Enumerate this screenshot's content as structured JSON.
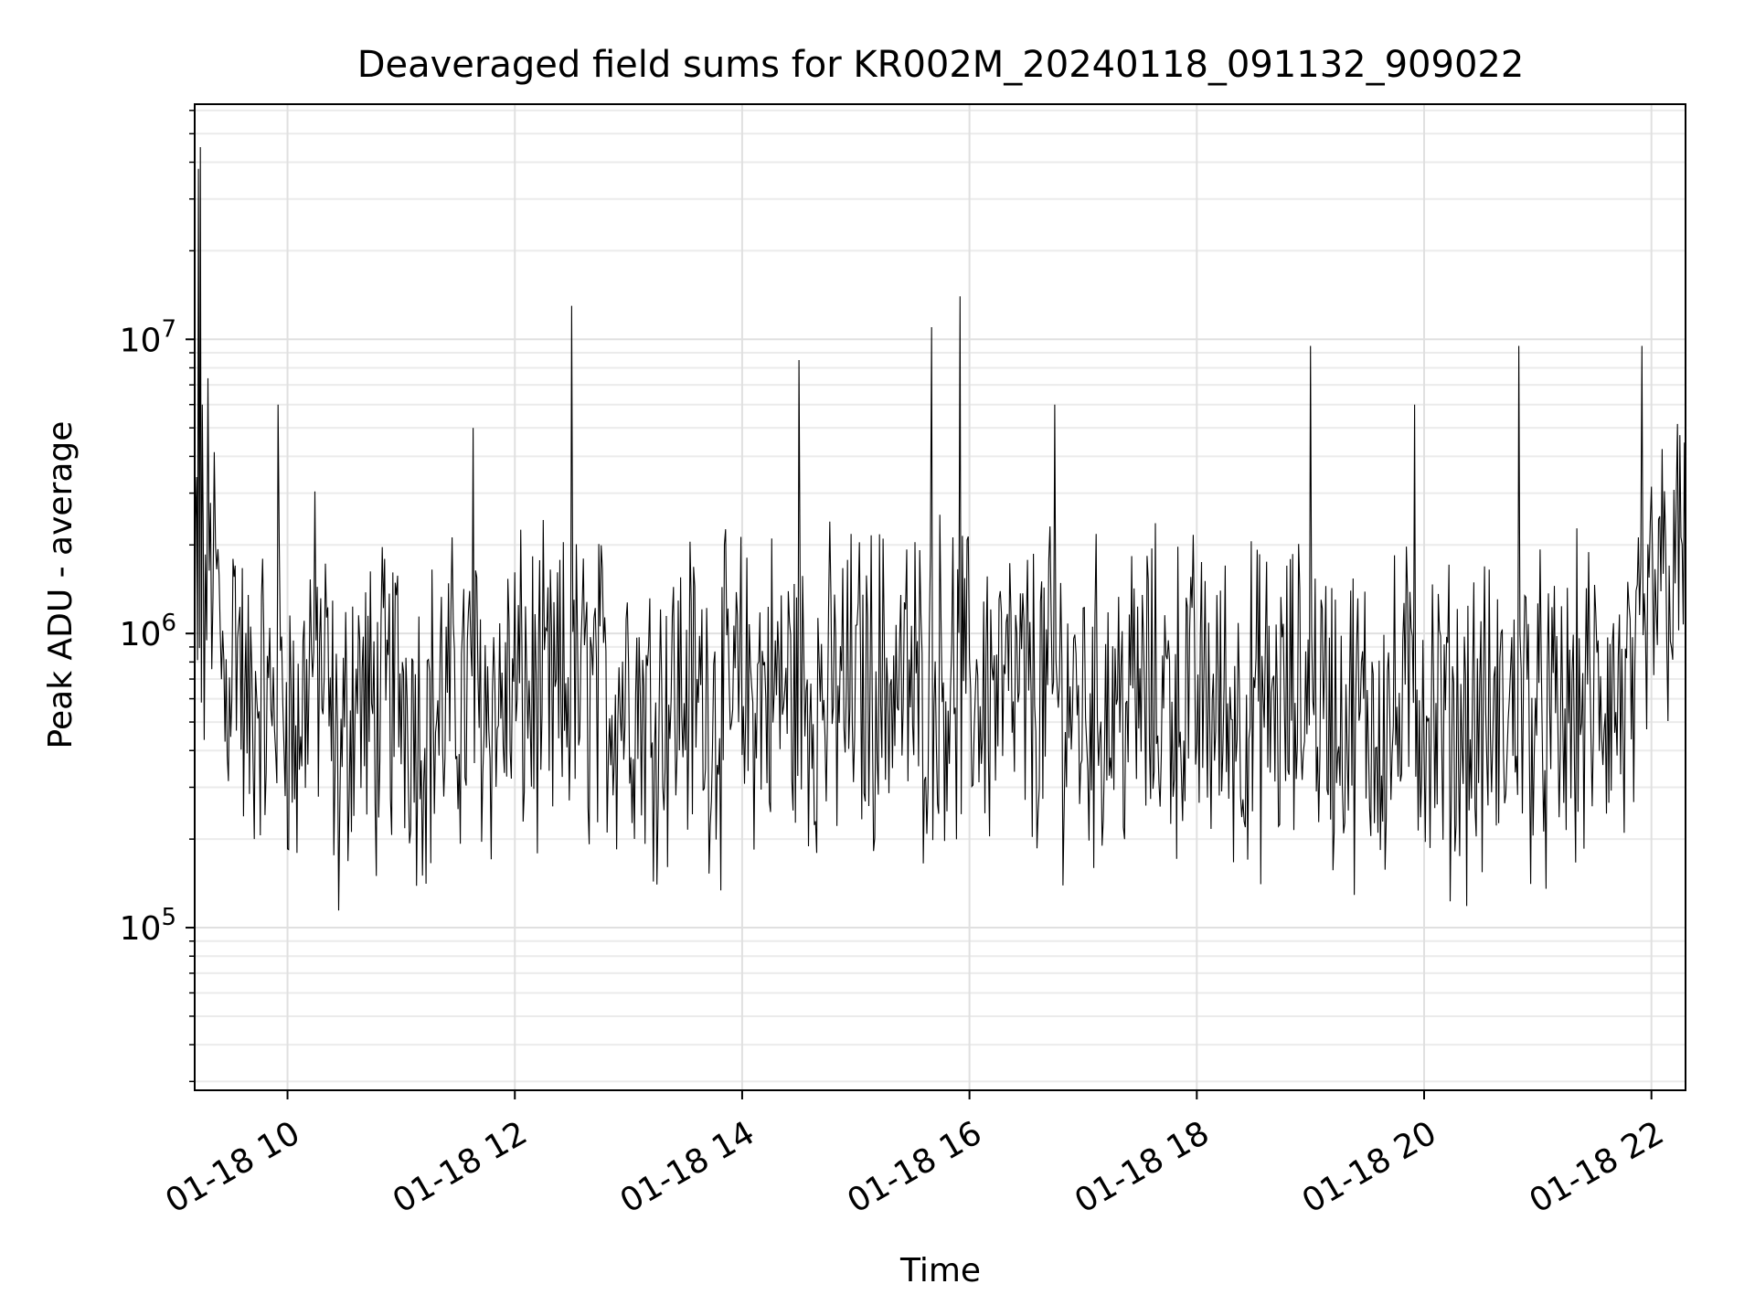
{
  "chart_data": {
    "type": "line",
    "title": "Deaveraged field sums for KR002M_20240118_091132_909022",
    "xlabel": "Time",
    "ylabel": "Peak ADU - average",
    "xlim": [
      "2024-01-18 09:11",
      "2024-01-18 22:18"
    ],
    "ylim": [
      28000,
      63000000
    ],
    "yscale": "log",
    "grid": true,
    "legend": "none",
    "x_ticks": [
      {
        "label": "01-18 10",
        "x": "2024-01-18 10:00"
      },
      {
        "label": "01-18 12",
        "x": "2024-01-18 12:00"
      },
      {
        "label": "01-18 14",
        "x": "2024-01-18 14:00"
      },
      {
        "label": "01-18 16",
        "x": "2024-01-18 16:00"
      },
      {
        "label": "01-18 18",
        "x": "2024-01-18 18:00"
      },
      {
        "label": "01-18 20",
        "x": "2024-01-18 20:00"
      },
      {
        "label": "01-18 22",
        "x": "2024-01-18 22:00"
      }
    ],
    "y_ticks": [
      {
        "mantissa": "10",
        "exponent": "5",
        "value": 100000
      },
      {
        "mantissa": "10",
        "exponent": "6",
        "value": 1000000
      },
      {
        "mantissa": "10",
        "exponent": "7",
        "value": 10000000
      }
    ],
    "line_color": "#000000",
    "series": [
      {
        "x": [
          "2024-01-18 09:11",
          "2024-01-18 09:12",
          "2024-01-18 09:13",
          "2024-01-18 09:14",
          "2024-01-18 09:15",
          "2024-01-18 09:16",
          "2024-01-18 09:18",
          "2024-01-18 09:22",
          "2024-01-18 09:27",
          "2024-01-18 09:33",
          "2024-01-18 09:38",
          "2024-01-18 09:45",
          "2024-01-18 09:50",
          "2024-01-18 09:55",
          "2024-01-18 10:00",
          "2024-01-18 10:05",
          "2024-01-18 10:12",
          "2024-01-18 10:20",
          "2024-01-18 10:27",
          "2024-01-18 10:35",
          "2024-01-18 10:45",
          "2024-01-18 11:00",
          "2024-01-18 11:10",
          "2024-01-18 11:20",
          "2024-01-18 11:30",
          "2024-01-18 11:38",
          "2024-01-18 11:45",
          "2024-01-18 11:52",
          "2024-01-18 12:00",
          "2024-01-18 12:10",
          "2024-01-18 12:20",
          "2024-01-18 12:30",
          "2024-01-18 12:38",
          "2024-01-18 12:50",
          "2024-01-18 13:00",
          "2024-01-18 13:10",
          "2024-01-18 13:20",
          "2024-01-18 13:30",
          "2024-01-18 13:40",
          "2024-01-18 13:50",
          "2024-01-18 14:00",
          "2024-01-18 14:15",
          "2024-01-18 14:30",
          "2024-01-18 14:45",
          "2024-01-18 15:00",
          "2024-01-18 15:15",
          "2024-01-18 15:30",
          "2024-01-18 15:40",
          "2024-01-18 15:45",
          "2024-01-18 15:55",
          "2024-01-18 16:10",
          "2024-01-18 16:25",
          "2024-01-18 16:35",
          "2024-01-18 16:45",
          "2024-01-18 17:00",
          "2024-01-18 17:15",
          "2024-01-18 17:30",
          "2024-01-18 17:45",
          "2024-01-18 18:00",
          "2024-01-18 18:15",
          "2024-01-18 18:30",
          "2024-01-18 18:45",
          "2024-01-18 19:00",
          "2024-01-18 19:15",
          "2024-01-18 19:30",
          "2024-01-18 19:45",
          "2024-01-18 19:55",
          "2024-01-18 20:10",
          "2024-01-18 20:25",
          "2024-01-18 20:40",
          "2024-01-18 20:45",
          "2024-01-18 20:50",
          "2024-01-18 21:00",
          "2024-01-18 21:10",
          "2024-01-18 21:20",
          "2024-01-18 21:35",
          "2024-01-18 21:50",
          "2024-01-18 21:55",
          "2024-01-18 22:00",
          "2024-01-18 22:05",
          "2024-01-18 22:10",
          "2024-01-18 22:15",
          "2024-01-18 22:18"
        ],
        "values": [
          700000,
          2000000,
          38000000,
          45000000,
          6000000,
          1000000,
          2200000,
          1500000,
          600000,
          1200000,
          450000,
          700000,
          500000,
          6000000,
          600000,
          400000,
          900000,
          700000,
          300000,
          700000,
          500000,
          700000,
          500000,
          550000,
          600000,
          5000000,
          600000,
          550000,
          650000,
          600000,
          550000,
          13000000,
          650000,
          600000,
          700000,
          550000,
          600000,
          650000,
          600000,
          550000,
          620000,
          650000,
          8500000,
          600000,
          650000,
          700000,
          650000,
          11000000,
          750000,
          14000000,
          650000,
          600000,
          600000,
          6000000,
          550000,
          600000,
          600000,
          620000,
          600000,
          550000,
          560000,
          550000,
          9500000,
          520000,
          500000,
          500000,
          6000000,
          480000,
          500000,
          470000,
          500000,
          9500000,
          500000,
          450000,
          550000,
          600000,
          550000,
          9500000,
          1300000,
          1500000,
          1600000,
          1700000,
          1600000
        ]
      }
    ]
  }
}
